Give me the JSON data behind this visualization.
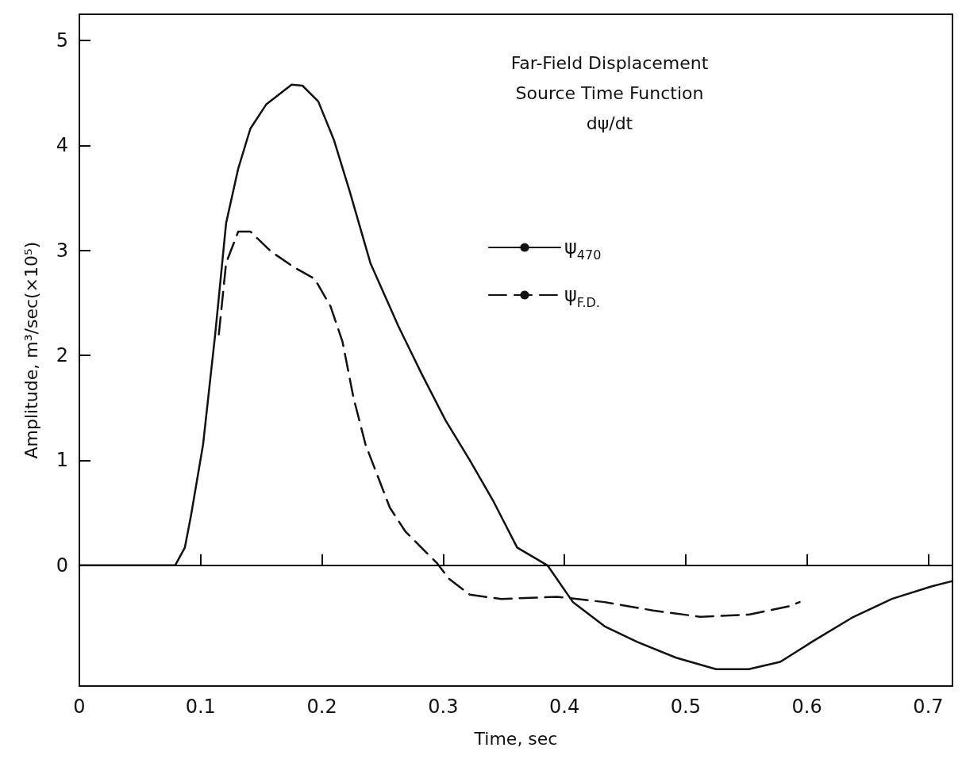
{
  "chart_data": {
    "type": "line",
    "annotations": [
      "Far-Field Displacement",
      "Source Time Function",
      "dψ/dt"
    ],
    "xlabel": "Time, sec",
    "ylabel": "Amplitude, m³/sec(×10⁵)",
    "xlim": [
      0,
      0.72
    ],
    "xticks": [
      0,
      0.1,
      0.2,
      0.3,
      0.4,
      0.5,
      0.6,
      0.7
    ],
    "ylim": [
      -1.15,
      5.25
    ],
    "yticks": [
      0,
      1,
      2,
      3,
      4,
      5
    ],
    "grid": false,
    "legend": "top right",
    "marker": "none",
    "ref_lines": [
      {
        "axis": "y",
        "value": 0,
        "color": "#000000",
        "line_style": "solid"
      }
    ],
    "series": [
      {
        "name": "ψ$_{470}$",
        "color": "#111111",
        "line_style": "solid",
        "x": [
          0,
          0.079,
          0.087,
          0.092,
          0.102,
          0.112,
          0.121,
          0.131,
          0.141,
          0.154,
          0.175,
          0.184,
          0.197,
          0.21,
          0.223,
          0.24,
          0.263,
          0.282,
          0.302,
          0.322,
          0.341,
          0.361,
          0.386,
          0.407,
          0.433,
          0.46,
          0.492,
          0.525,
          0.552,
          0.578,
          0.604,
          0.637,
          0.67,
          0.703,
          0.72
        ],
        "values": [
          0,
          0,
          0.17,
          0.47,
          1.15,
          2.2,
          3.26,
          3.78,
          4.16,
          4.39,
          4.58,
          4.57,
          4.42,
          4.05,
          3.56,
          2.88,
          2.28,
          1.83,
          1.38,
          1.0,
          0.62,
          0.17,
          0,
          -0.35,
          -0.58,
          -0.73,
          -0.88,
          -0.99,
          -0.99,
          -0.92,
          -0.73,
          -0.5,
          -0.32,
          -0.2,
          -0.15
        ]
      },
      {
        "name": "ψ$_{F.D.}$",
        "color": "#111111",
        "line_style": "dashed",
        "x": [
          0.115,
          0.121,
          0.131,
          0.141,
          0.158,
          0.177,
          0.194,
          0.207,
          0.217,
          0.226,
          0.236,
          0.246,
          0.256,
          0.269,
          0.282,
          0.295,
          0.305,
          0.322,
          0.348,
          0.394,
          0.433,
          0.473,
          0.512,
          0.552,
          0.585,
          0.594
        ],
        "values": [
          2.2,
          2.88,
          3.18,
          3.18,
          2.99,
          2.84,
          2.73,
          2.47,
          2.13,
          1.6,
          1.15,
          0.85,
          0.55,
          0.32,
          0.17,
          0.02,
          -0.13,
          -0.28,
          -0.32,
          -0.3,
          -0.35,
          -0.43,
          -0.49,
          -0.47,
          -0.39,
          -0.35
        ]
      }
    ]
  }
}
